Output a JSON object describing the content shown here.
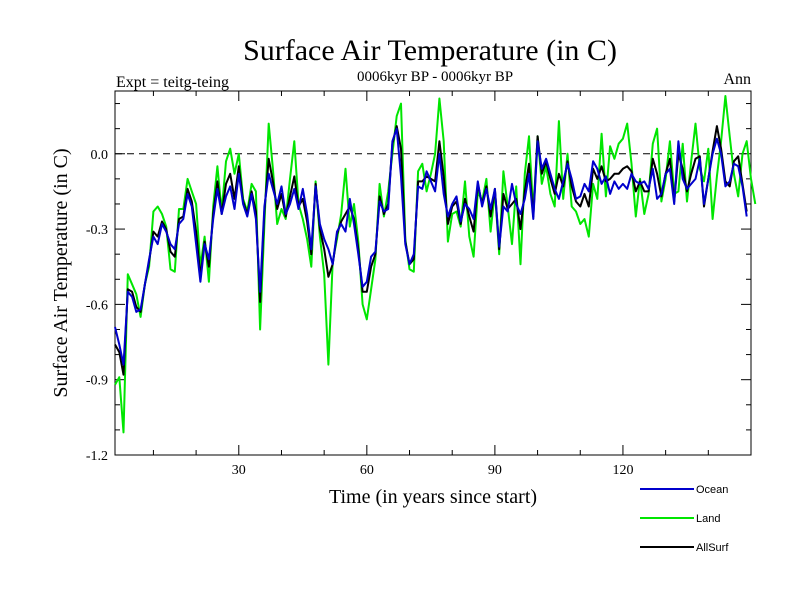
{
  "chart_data": {
    "type": "line",
    "title": "Surface Air Temperature (in C)",
    "subtitle": "0006kyr BP - 0006kyr BP",
    "left_label": "Expt = teitg-teing",
    "right_label": "Ann",
    "xlabel": "Time (in years since start)",
    "ylabel": "Surface Air Temperature (in C)",
    "xlim": [
      1,
      150
    ],
    "ylim": [
      -1.2,
      0.25
    ],
    "xticks": [
      30,
      60,
      90,
      120
    ],
    "yticks": [
      -1.2,
      -0.9,
      -0.6,
      -0.3,
      0.0
    ],
    "ytick_labels": [
      "-1.2",
      "-0.9",
      "-0.6",
      "-0.3",
      "0.0"
    ],
    "reference_line": 0.0,
    "legend_position": "bottom-right",
    "series": [
      {
        "name": "Ocean",
        "color": "#0000cc",
        "x_start": 1,
        "values": [
          -0.69,
          -0.76,
          -0.84,
          -0.55,
          -0.57,
          -0.63,
          -0.62,
          -0.52,
          -0.42,
          -0.33,
          -0.36,
          -0.28,
          -0.31,
          -0.36,
          -0.38,
          -0.28,
          -0.26,
          -0.16,
          -0.21,
          -0.36,
          -0.51,
          -0.36,
          -0.42,
          -0.26,
          -0.14,
          -0.24,
          -0.17,
          -0.13,
          -0.22,
          -0.08,
          -0.2,
          -0.25,
          -0.16,
          -0.26,
          -0.55,
          -0.21,
          -0.08,
          -0.14,
          -0.2,
          -0.13,
          -0.24,
          -0.2,
          -0.14,
          -0.22,
          -0.14,
          -0.24,
          -0.38,
          -0.13,
          -0.28,
          -0.34,
          -0.38,
          -0.44,
          -0.31,
          -0.28,
          -0.31,
          -0.18,
          -0.28,
          -0.4,
          -0.53,
          -0.51,
          -0.41,
          -0.39,
          -0.19,
          -0.23,
          -0.22,
          0.05,
          0.1,
          -0.09,
          -0.36,
          -0.44,
          -0.4,
          -0.13,
          -0.14,
          -0.07,
          -0.11,
          -0.15,
          0.0,
          -0.16,
          -0.25,
          -0.2,
          -0.17,
          -0.27,
          -0.2,
          -0.22,
          -0.26,
          -0.11,
          -0.21,
          -0.14,
          -0.22,
          -0.14,
          -0.37,
          -0.21,
          -0.23,
          -0.12,
          -0.2,
          -0.24,
          -0.18,
          -0.08,
          -0.26,
          0.05,
          -0.06,
          -0.02,
          -0.08,
          -0.14,
          -0.18,
          -0.11,
          -0.04,
          -0.1,
          -0.18,
          -0.17,
          -0.12,
          -0.15,
          -0.03,
          -0.06,
          -0.12,
          -0.09,
          -0.16,
          -0.11,
          -0.14,
          -0.12,
          -0.14,
          -0.08,
          -0.11,
          -0.12,
          -0.11,
          -0.14,
          -0.06,
          -0.18,
          -0.16,
          -0.08,
          -0.06,
          -0.2,
          0.05,
          -0.1,
          -0.14,
          -0.12,
          -0.1,
          -0.02,
          -0.2,
          -0.1,
          0.0,
          0.06,
          0.0,
          -0.13,
          -0.11,
          -0.04,
          -0.05,
          -0.13,
          -0.25
        ]
      },
      {
        "name": "Land",
        "color": "#00e600",
        "x_start": 1,
        "values": [
          -0.92,
          -0.89,
          -1.11,
          -0.48,
          -0.52,
          -0.56,
          -0.65,
          -0.52,
          -0.45,
          -0.23,
          -0.21,
          -0.24,
          -0.29,
          -0.46,
          -0.47,
          -0.22,
          -0.22,
          -0.1,
          -0.15,
          -0.2,
          -0.45,
          -0.33,
          -0.51,
          -0.21,
          -0.05,
          -0.23,
          -0.03,
          0.02,
          -0.08,
          0.0,
          -0.18,
          -0.23,
          -0.12,
          -0.15,
          -0.7,
          -0.28,
          0.12,
          -0.06,
          -0.28,
          -0.22,
          -0.26,
          -0.1,
          0.05,
          -0.2,
          -0.26,
          -0.34,
          -0.45,
          -0.11,
          -0.33,
          -0.48,
          -0.84,
          -0.43,
          -0.34,
          -0.24,
          -0.06,
          -0.29,
          -0.2,
          -0.35,
          -0.6,
          -0.66,
          -0.54,
          -0.42,
          -0.12,
          -0.25,
          -0.15,
          0.0,
          0.15,
          0.2,
          -0.34,
          -0.46,
          -0.47,
          -0.07,
          -0.04,
          -0.15,
          -0.08,
          0.0,
          0.22,
          0.05,
          -0.35,
          -0.24,
          -0.23,
          -0.29,
          -0.11,
          -0.33,
          -0.41,
          -0.15,
          -0.19,
          -0.1,
          -0.31,
          -0.15,
          -0.4,
          -0.07,
          -0.21,
          -0.36,
          -0.13,
          -0.44,
          -0.08,
          0.07,
          -0.23,
          0.07,
          -0.12,
          -0.05,
          -0.16,
          -0.21,
          0.13,
          -0.18,
          0.0,
          -0.21,
          -0.23,
          -0.28,
          -0.26,
          -0.33,
          -0.12,
          -0.18,
          0.08,
          -0.17,
          0.03,
          -0.02,
          0.04,
          0.06,
          0.12,
          -0.04,
          -0.25,
          -0.1,
          -0.24,
          -0.16,
          0.04,
          0.1,
          -0.19,
          -0.1,
          0.05,
          -0.16,
          -0.15,
          0.04,
          -0.19,
          -0.03,
          0.12,
          -0.06,
          -0.11,
          0.02,
          -0.26,
          -0.09,
          0.05,
          0.23,
          0.07,
          -0.08,
          -0.17,
          0.0,
          0.05,
          -0.1,
          -0.2
        ]
      },
      {
        "name": "AllSurf",
        "color": "#000000",
        "x_start": 1,
        "values": [
          -0.76,
          -0.79,
          -0.88,
          -0.54,
          -0.55,
          -0.61,
          -0.63,
          -0.52,
          -0.43,
          -0.31,
          -0.33,
          -0.27,
          -0.3,
          -0.39,
          -0.41,
          -0.26,
          -0.25,
          -0.14,
          -0.19,
          -0.31,
          -0.49,
          -0.35,
          -0.45,
          -0.24,
          -0.11,
          -0.24,
          -0.12,
          -0.08,
          -0.18,
          -0.05,
          -0.19,
          -0.24,
          -0.15,
          -0.23,
          -0.59,
          -0.23,
          -0.02,
          -0.11,
          -0.22,
          -0.16,
          -0.25,
          -0.17,
          -0.09,
          -0.21,
          -0.18,
          -0.27,
          -0.4,
          -0.12,
          -0.3,
          -0.38,
          -0.49,
          -0.44,
          -0.32,
          -0.27,
          -0.24,
          -0.21,
          -0.26,
          -0.38,
          -0.55,
          -0.55,
          -0.45,
          -0.4,
          -0.17,
          -0.24,
          -0.2,
          0.04,
          0.11,
          0.02,
          -0.35,
          -0.44,
          -0.42,
          -0.11,
          -0.11,
          -0.09,
          -0.1,
          -0.11,
          0.05,
          -0.09,
          -0.28,
          -0.21,
          -0.19,
          -0.28,
          -0.18,
          -0.25,
          -0.31,
          -0.12,
          -0.2,
          -0.13,
          -0.25,
          -0.14,
          -0.38,
          -0.16,
          -0.22,
          -0.2,
          -0.18,
          -0.3,
          -0.15,
          -0.04,
          -0.25,
          0.07,
          -0.08,
          -0.03,
          -0.1,
          -0.16,
          -0.08,
          -0.13,
          -0.03,
          -0.13,
          -0.19,
          -0.21,
          -0.16,
          -0.21,
          -0.06,
          -0.1,
          -0.05,
          -0.11,
          -0.1,
          -0.08,
          -0.08,
          -0.06,
          -0.05,
          -0.07,
          -0.15,
          -0.11,
          -0.15,
          -0.15,
          -0.02,
          -0.08,
          -0.17,
          -0.08,
          -0.02,
          -0.19,
          0.0,
          -0.06,
          -0.15,
          -0.08,
          -0.02,
          -0.01,
          -0.21,
          -0.1,
          0.01,
          0.11,
          0.02,
          -0.11,
          -0.13,
          -0.03,
          -0.01,
          -0.12,
          -0.23
        ]
      }
    ]
  }
}
